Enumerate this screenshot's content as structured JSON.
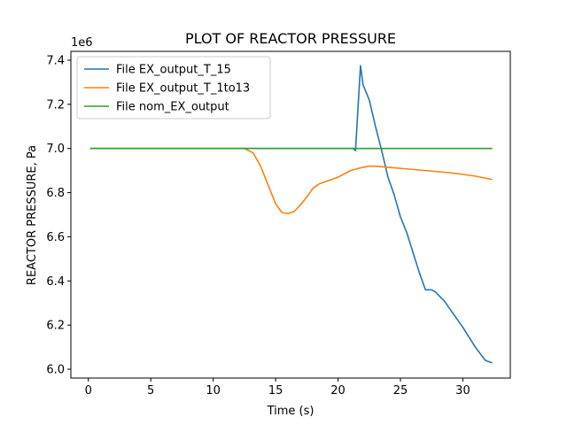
{
  "chart_data": {
    "type": "line",
    "title": "PLOT OF REACTOR PRESSURE",
    "xlabel": "Time (s)",
    "ylabel": "REACTOR PRESSURE, Pa",
    "y_offset_label": "1e6",
    "xlim": [
      -1.4,
      33.8
    ],
    "ylim": [
      5.96,
      7.44
    ],
    "x_ticks": [
      0,
      5,
      10,
      15,
      20,
      25,
      30
    ],
    "y_ticks": [
      6.0,
      6.2,
      6.4,
      6.6,
      6.8,
      7.0,
      7.2,
      7.4
    ],
    "y_tick_labels": [
      "6.0",
      "6.2",
      "6.4",
      "6.6",
      "6.8",
      "7.0",
      "7.2",
      "7.4"
    ],
    "grid": false,
    "legend_position": "upper-left",
    "series": [
      {
        "name": "File EX_output_T_15",
        "color": "#1f77b4",
        "x": [
          0.2,
          5,
          10,
          15,
          20,
          21.2,
          21.4,
          21.8,
          22.0,
          22.5,
          23.0,
          23.5,
          24.0,
          24.5,
          25.0,
          25.5,
          26.0,
          26.5,
          27.0,
          27.5,
          27.8,
          28.5,
          29.0,
          30.0,
          31.0,
          31.8,
          32.3
        ],
        "y": [
          7.0,
          7.0,
          7.0,
          7.0,
          7.0,
          7.0,
          6.99,
          7.375,
          7.29,
          7.22,
          7.1,
          6.99,
          6.87,
          6.79,
          6.69,
          6.62,
          6.53,
          6.44,
          6.36,
          6.36,
          6.35,
          6.31,
          6.27,
          6.19,
          6.1,
          6.04,
          6.03
        ]
      },
      {
        "name": "File EX_output_T_1to13",
        "color": "#ff7f0e",
        "x": [
          0.2,
          5,
          10,
          12.5,
          13.2,
          13.8,
          14.5,
          15.0,
          15.5,
          16.0,
          16.5,
          17.0,
          17.5,
          18.0,
          18.5,
          19.0,
          20.0,
          21.0,
          22.0,
          22.5,
          23.0,
          24.0,
          25.0,
          27.0,
          29.0,
          31.0,
          32.3
        ],
        "y": [
          7.0,
          7.0,
          7.0,
          7.0,
          6.98,
          6.92,
          6.82,
          6.75,
          6.71,
          6.705,
          6.715,
          6.745,
          6.78,
          6.82,
          6.84,
          6.85,
          6.87,
          6.9,
          6.915,
          6.92,
          6.92,
          6.915,
          6.91,
          6.9,
          6.89,
          6.875,
          6.86
        ]
      },
      {
        "name": "File nom_EX_output",
        "color": "#2ca02c",
        "x": [
          0.2,
          32.3
        ],
        "y": [
          7.0,
          7.0
        ]
      }
    ]
  }
}
